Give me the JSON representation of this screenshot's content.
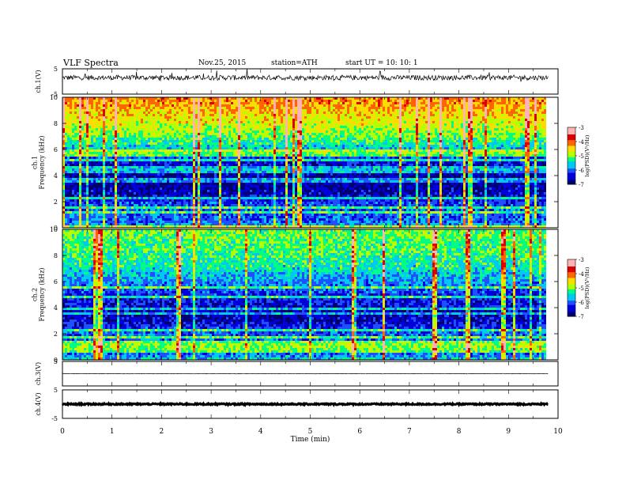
{
  "header": {
    "title": "VLF  Spectra",
    "date": "Nov.25, 2015",
    "station": "station=ATH",
    "start": "start  UT  =    10: 10: 1"
  },
  "chart_data": {
    "type": "heatmap",
    "title": "VLF  Spectra",
    "xlabel": "Time  (min)",
    "xlim": [
      0,
      10
    ],
    "x_ticks": [
      "0",
      "1",
      "2",
      "3",
      "4",
      "5",
      "6",
      "7",
      "8",
      "9",
      "10"
    ],
    "data_end_min": 9.8,
    "panels": [
      {
        "id": "ch1-wave",
        "type": "line",
        "ylabel": "ch.1(V)",
        "ylim": [
          -5,
          5
        ],
        "y_ticks": [
          "5",
          "-5"
        ],
        "baseline": 1.5,
        "noise_amp": 1.0
      },
      {
        "id": "ch1-spec",
        "type": "heatmap",
        "ylabel": "ch.1\nFrequency  (kHz)",
        "ylim": [
          0,
          10
        ],
        "y_ticks": [
          "0",
          "2",
          "4",
          "6",
          "8",
          "10"
        ],
        "colorbar": {
          "label": "log(PSD)(V²/Hz)",
          "range": [
            -7,
            -3
          ],
          "ticks": [
            "-3",
            "-4",
            "-5",
            "-6",
            "-7"
          ]
        },
        "profile_khz": [
          0,
          0.5,
          1,
          1.5,
          2,
          2.5,
          3,
          3.5,
          4,
          4.5,
          5,
          5.5,
          6,
          6.5,
          7,
          7.5,
          8,
          8.5,
          9,
          9.5,
          10
        ],
        "profile_logpsd": [
          -5.5,
          -6.0,
          -6.0,
          -6.0,
          -6.2,
          -6.5,
          -6.6,
          -6.7,
          -6.6,
          -6.5,
          -6.4,
          -6.0,
          -5.6,
          -5.3,
          -5.0,
          -4.8,
          -4.6,
          -4.5,
          -4.3,
          -4.2,
          -4.1
        ]
      },
      {
        "id": "ch2-spec",
        "type": "heatmap",
        "ylabel": "ch.2\nFrequency  (kHz)",
        "ylim": [
          0,
          10
        ],
        "y_ticks": [
          "0",
          "2",
          "4",
          "6",
          "8",
          "10"
        ],
        "colorbar": {
          "label": "log(PSD)(V²/Hz)",
          "range": [
            -7,
            -3
          ],
          "ticks": [
            "-3",
            "-4",
            "-5",
            "-6",
            "-7"
          ]
        },
        "profile_khz": [
          0,
          0.5,
          1,
          1.5,
          2,
          2.5,
          3,
          3.5,
          4,
          4.5,
          5,
          5.5,
          6,
          6.5,
          7,
          7.5,
          8,
          8.5,
          9,
          9.5,
          10
        ],
        "profile_logpsd": [
          -5.5,
          -6.0,
          -5.8,
          -5.9,
          -6.0,
          -6.2,
          -6.5,
          -6.6,
          -6.4,
          -6.3,
          -6.2,
          -6.0,
          -5.8,
          -5.6,
          -5.4,
          -5.3,
          -5.2,
          -5.1,
          -5.1,
          -5.0,
          -5.0
        ]
      },
      {
        "id": "ch3-wave",
        "type": "line",
        "ylabel": "ch.3(V)",
        "ylim": [
          -5,
          5
        ],
        "y_ticks": [
          "5"
        ],
        "baseline": 0,
        "noise_amp": 0.1
      },
      {
        "id": "ch4-wave",
        "type": "line",
        "ylabel": "ch.4(V)",
        "ylim": [
          -5,
          5
        ],
        "y_ticks": [
          "5",
          "-5"
        ],
        "baseline": 0,
        "noise_amp": 0.25
      }
    ]
  },
  "colors": {
    "palette": [
      "#00006e",
      "#0000dc",
      "#1e50ff",
      "#00c8f0",
      "#00ff80",
      "#b4ff00",
      "#ffdc00",
      "#ff6400",
      "#dc0000",
      "#ffb4b4"
    ],
    "trace": "#000000"
  }
}
